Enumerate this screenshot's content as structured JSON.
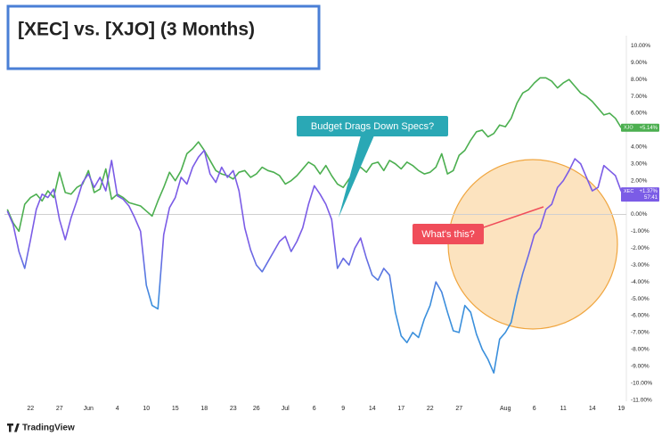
{
  "chart_data": {
    "type": "line",
    "title": "[XEC] vs. [XJO] (3 Months)",
    "categories": [
      null,
      null,
      null,
      null,
      "22",
      null,
      null,
      null,
      null,
      "27",
      null,
      null,
      null,
      null,
      "Jun",
      null,
      null,
      null,
      null,
      "4",
      null,
      null,
      null,
      null,
      "10",
      null,
      null,
      null,
      null,
      "15",
      null,
      null,
      null,
      null,
      "18",
      null,
      null,
      null,
      null,
      "23",
      null,
      null,
      null,
      "26",
      null,
      null,
      null,
      null,
      "Jul",
      null,
      null,
      null,
      null,
      "6",
      null,
      null,
      null,
      null,
      "9",
      null,
      null,
      null,
      null,
      "14",
      null,
      null,
      null,
      null,
      "17",
      null,
      null,
      null,
      null,
      "22",
      null,
      null,
      null,
      null,
      "27",
      null,
      null,
      null,
      null,
      null,
      null,
      null,
      "Aug",
      null,
      null,
      null,
      null,
      "6",
      null,
      null,
      null,
      null,
      "11",
      null,
      null,
      null,
      null,
      "14",
      null,
      null,
      null,
      null,
      "19"
    ],
    "series": [
      {
        "name": "XJO",
        "color": "#4caf50",
        "values": [
          0.3,
          -0.5,
          -1.0,
          0.6,
          1.0,
          1.2,
          0.8,
          1.4,
          1.0,
          2.5,
          1.3,
          1.2,
          1.6,
          1.8,
          2.6,
          1.3,
          1.5,
          2.7,
          0.9,
          1.2,
          1.0,
          0.7,
          0.6,
          0.5,
          0.2,
          -0.1,
          0.8,
          1.6,
          2.5,
          2.0,
          2.6,
          3.6,
          3.9,
          4.3,
          3.8,
          3.2,
          2.6,
          2.4,
          2.3,
          2.1,
          2.5,
          2.6,
          2.2,
          2.4,
          2.8,
          2.6,
          2.5,
          2.3,
          1.8,
          2.0,
          2.3,
          2.7,
          3.1,
          2.9,
          2.4,
          2.9,
          2.3,
          1.8,
          1.6,
          2.1,
          2.6,
          2.8,
          2.5,
          3.0,
          3.1,
          2.6,
          3.2,
          3.0,
          2.7,
          3.1,
          2.9,
          2.6,
          2.4,
          2.5,
          2.8,
          3.6,
          2.4,
          2.6,
          3.5,
          3.8,
          4.4,
          4.9,
          5.0,
          4.6,
          4.8,
          5.3,
          5.2,
          5.7,
          6.6,
          7.2,
          7.4,
          7.8,
          8.1,
          8.1,
          7.9,
          7.5,
          7.8,
          8.0,
          7.6,
          7.2,
          7.0,
          6.7,
          6.3,
          5.9,
          6.0,
          5.7,
          5.14
        ],
        "value_labels": {
          "106": "+5.14%"
        }
      },
      {
        "name": "XEC",
        "color": "#7b5ce6",
        "color_low": "#3a8fdc",
        "values": [
          0.2,
          -0.6,
          -2.2,
          -3.2,
          -1.5,
          0.3,
          1.2,
          1.0,
          1.5,
          -0.3,
          -1.5,
          -0.2,
          0.8,
          1.9,
          2.4,
          1.6,
          2.2,
          1.4,
          3.2,
          1.1,
          0.9,
          0.5,
          -0.2,
          -1.0,
          -4.2,
          -5.4,
          -5.6,
          -1.2,
          0.4,
          1.0,
          2.2,
          1.8,
          2.8,
          3.4,
          3.8,
          2.4,
          1.9,
          2.8,
          2.2,
          2.6,
          1.4,
          -0.8,
          -2.1,
          -3.0,
          -3.4,
          -2.8,
          -2.2,
          -1.6,
          -1.3,
          -2.2,
          -1.6,
          -0.8,
          0.6,
          1.7,
          1.2,
          0.6,
          -0.3,
          -3.2,
          -2.6,
          -3.0,
          -2.0,
          -1.4,
          -2.6,
          -3.6,
          -3.9,
          -3.2,
          -3.6,
          -5.8,
          -7.2,
          -7.6,
          -7.0,
          -7.3,
          -6.2,
          -5.4,
          -4.0,
          -4.6,
          -5.8,
          -6.9,
          -7.0,
          -5.4,
          -5.8,
          -7.1,
          -8.0,
          -8.6,
          -9.4,
          -7.4,
          -7.0,
          -6.4,
          -4.8,
          -3.5,
          -2.4,
          -1.2,
          -0.8,
          0.3,
          0.6,
          1.6,
          2.0,
          2.6,
          3.3,
          3.0,
          2.2,
          1.4,
          1.6,
          2.9,
          2.6,
          2.3,
          1.37
        ],
        "value_labels": {
          "106": "+1.37%"
        },
        "countdown": "57:41"
      }
    ],
    "ylim": [
      -11.5,
      10.6
    ],
    "yticks": [
      {
        "value": 10,
        "label": "10.00%"
      },
      {
        "value": 9,
        "label": "9.00%"
      },
      {
        "value": 8,
        "label": "8.00%"
      },
      {
        "value": 7,
        "label": "7.00%"
      },
      {
        "value": 6,
        "label": "6.00%"
      },
      {
        "value": 5,
        "label": "5.00%"
      },
      {
        "value": 4,
        "label": "4.00%"
      },
      {
        "value": 3,
        "label": "3.00%"
      },
      {
        "value": 2,
        "label": "2.00%"
      },
      {
        "value": 1,
        "label": "1.00%"
      },
      {
        "value": 0,
        "label": "0.00%"
      },
      {
        "value": -1,
        "label": "-1.00%"
      },
      {
        "value": -2,
        "label": "-2.00%"
      },
      {
        "value": -3,
        "label": "-3.00%"
      },
      {
        "value": -4,
        "label": "-4.00%"
      },
      {
        "value": -5,
        "label": "-5.00%"
      },
      {
        "value": -6,
        "label": "-6.00%"
      },
      {
        "value": -7,
        "label": "-7.00%"
      },
      {
        "value": -8,
        "label": "-8.00%"
      },
      {
        "value": -9,
        "label": "-9.00%"
      },
      {
        "value": -10,
        "label": "-10.00%"
      },
      {
        "value": -11,
        "label": "-11.00%"
      }
    ],
    "grid": false,
    "annotations": [
      {
        "text": "Budget Drags Down Specs?"
      },
      {
        "text": "What's this?"
      }
    ],
    "brand": "TradingView"
  }
}
